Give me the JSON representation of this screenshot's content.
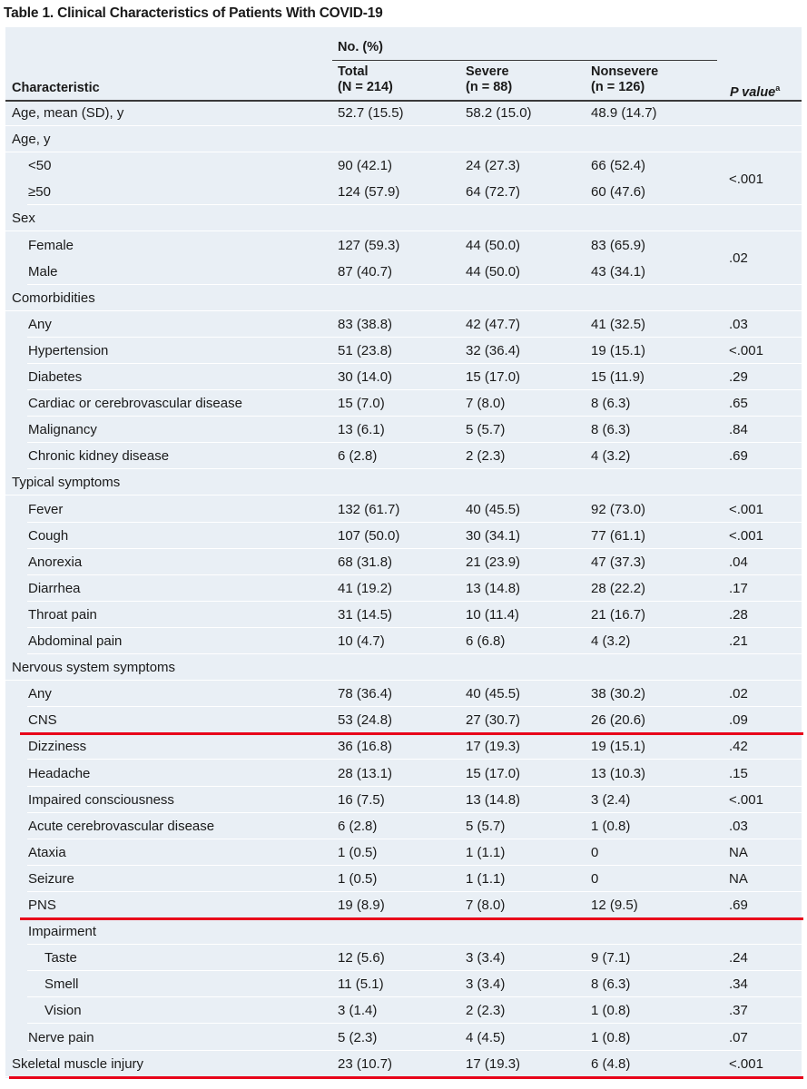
{
  "title": "Table 1. Clinical Characteristics of Patients With COVID-19",
  "header": {
    "group_label": "No. (%)",
    "characteristic": "Characteristic",
    "total_line1": "Total",
    "total_line2": "(N = 214)",
    "severe_line1": "Severe",
    "severe_line2": "(n = 88)",
    "nonsevere_line1": "Nonsevere",
    "nonsevere_line2": "(n = 126)",
    "pvalue": "P value",
    "pvalue_sup": "a"
  },
  "rows": [
    {
      "label": "Age, mean (SD), y",
      "indent": 0,
      "total": "52.7 (15.5)",
      "severe": "58.2 (15.0)",
      "nonsevere": "48.9 (14.7)",
      "p": ""
    },
    {
      "label": "Age, y",
      "indent": 0,
      "total": "",
      "severe": "",
      "nonsevere": "",
      "p": ""
    },
    {
      "label": "<50",
      "indent": 1,
      "total": "90 (42.1)",
      "severe": "24 (27.3)",
      "nonsevere": "66 (52.4)",
      "p": "",
      "no_sep": true
    },
    {
      "label": "≥50",
      "indent": 1,
      "total": "124 (57.9)",
      "severe": "64 (72.7)",
      "nonsevere": "60 (47.6)",
      "p": ""
    },
    {
      "label": "Sex",
      "indent": 0,
      "total": "",
      "severe": "",
      "nonsevere": "",
      "p": ""
    },
    {
      "label": "Female",
      "indent": 1,
      "total": "127 (59.3)",
      "severe": "44 (50.0)",
      "nonsevere": "83 (65.9)",
      "p": "",
      "no_sep": true
    },
    {
      "label": "Male",
      "indent": 1,
      "total": "87 (40.7)",
      "severe": "44 (50.0)",
      "nonsevere": "43 (34.1)",
      "p": ""
    },
    {
      "label": "Comorbidities",
      "indent": 0,
      "total": "",
      "severe": "",
      "nonsevere": "",
      "p": ""
    },
    {
      "label": "Any",
      "indent": 1,
      "total": "83 (38.8)",
      "severe": "42 (47.7)",
      "nonsevere": "41 (32.5)",
      "p": ".03"
    },
    {
      "label": "Hypertension",
      "indent": 1,
      "total": "51 (23.8)",
      "severe": "32 (36.4)",
      "nonsevere": "19 (15.1)",
      "p": "<.001"
    },
    {
      "label": "Diabetes",
      "indent": 1,
      "total": "30 (14.0)",
      "severe": "15 (17.0)",
      "nonsevere": "15 (11.9)",
      "p": ".29"
    },
    {
      "label": "Cardiac or cerebrovascular disease",
      "indent": 1,
      "total": "15 (7.0)",
      "severe": "7 (8.0)",
      "nonsevere": "8 (6.3)",
      "p": ".65"
    },
    {
      "label": "Malignancy",
      "indent": 1,
      "total": "13 (6.1)",
      "severe": "5 (5.7)",
      "nonsevere": "8 (6.3)",
      "p": ".84"
    },
    {
      "label": "Chronic kidney disease",
      "indent": 1,
      "total": "6 (2.8)",
      "severe": "2 (2.3)",
      "nonsevere": "4 (3.2)",
      "p": ".69"
    },
    {
      "label": "Typical symptoms",
      "indent": 0,
      "total": "",
      "severe": "",
      "nonsevere": "",
      "p": ""
    },
    {
      "label": "Fever",
      "indent": 1,
      "total": "132 (61.7)",
      "severe": "40 (45.5)",
      "nonsevere": "92 (73.0)",
      "p": "<.001"
    },
    {
      "label": "Cough",
      "indent": 1,
      "total": "107 (50.0)",
      "severe": "30 (34.1)",
      "nonsevere": "77 (61.1)",
      "p": "<.001"
    },
    {
      "label": "Anorexia",
      "indent": 1,
      "total": "68 (31.8)",
      "severe": "21 (23.9)",
      "nonsevere": "47 (37.3)",
      "p": ".04"
    },
    {
      "label": "Diarrhea",
      "indent": 1,
      "total": "41 (19.2)",
      "severe": "13 (14.8)",
      "nonsevere": "28 (22.2)",
      "p": ".17"
    },
    {
      "label": "Throat pain",
      "indent": 1,
      "total": "31 (14.5)",
      "severe": "10 (11.4)",
      "nonsevere": "21 (16.7)",
      "p": ".28"
    },
    {
      "label": "Abdominal pain",
      "indent": 1,
      "total": "10 (4.7)",
      "severe": "6 (6.8)",
      "nonsevere": "4 (3.2)",
      "p": ".21"
    },
    {
      "label": "Nervous system symptoms",
      "indent": 0,
      "total": "",
      "severe": "",
      "nonsevere": "",
      "p": ""
    },
    {
      "label": "Any",
      "indent": 1,
      "total": "78 (36.4)",
      "severe": "40 (45.5)",
      "nonsevere": "38 (30.2)",
      "p": ".02"
    },
    {
      "label": "CNS",
      "indent": 1,
      "total": "53 (24.8)",
      "severe": "27 (30.7)",
      "nonsevere": "26 (20.6)",
      "p": ".09",
      "highlight": true
    },
    {
      "label": "Dizziness",
      "indent": 2,
      "total": "36 (16.8)",
      "severe": "17 (19.3)",
      "nonsevere": "19 (15.1)",
      "p": ".42"
    },
    {
      "label": "Headache",
      "indent": 2,
      "total": "28 (13.1)",
      "severe": "15 (17.0)",
      "nonsevere": "13 (10.3)",
      "p": ".15"
    },
    {
      "label": "Impaired consciousness",
      "indent": 2,
      "total": "16 (7.5)",
      "severe": "13 (14.8)",
      "nonsevere": "3 (2.4)",
      "p": "<.001"
    },
    {
      "label": "Acute cerebrovascular disease",
      "indent": 2,
      "total": "6 (2.8)",
      "severe": "5 (5.7)",
      "nonsevere": "1 (0.8)",
      "p": ".03"
    },
    {
      "label": "Ataxia",
      "indent": 2,
      "total": "1 (0.5)",
      "severe": "1 (1.1)",
      "nonsevere": "0",
      "p": "NA"
    },
    {
      "label": "Seizure",
      "indent": 2,
      "total": "1 (0.5)",
      "severe": "1 (1.1)",
      "nonsevere": "0",
      "p": "NA"
    },
    {
      "label": "PNS",
      "indent": 1,
      "total": "19 (8.9)",
      "severe": "7 (8.0)",
      "nonsevere": "12 (9.5)",
      "p": ".69",
      "highlight": true
    },
    {
      "label": "Impairment",
      "indent": 2,
      "total": "",
      "severe": "",
      "nonsevere": "",
      "p": ""
    },
    {
      "label": "Taste",
      "indent": 3,
      "total": "12 (5.6)",
      "severe": "3 (3.4)",
      "nonsevere": "9 (7.1)",
      "p": ".24"
    },
    {
      "label": "Smell",
      "indent": 3,
      "total": "11 (5.1)",
      "severe": "3 (3.4)",
      "nonsevere": "8 (6.3)",
      "p": ".34"
    },
    {
      "label": "Vision",
      "indent": 3,
      "total": "3 (1.4)",
      "severe": "2 (2.3)",
      "nonsevere": "1 (0.8)",
      "p": ".37"
    },
    {
      "label": "Nerve pain",
      "indent": 2,
      "total": "5 (2.3)",
      "severe": "4 (4.5)",
      "nonsevere": "1 (0.8)",
      "p": ".07"
    },
    {
      "label": "Skeletal muscle injury",
      "indent": 0,
      "total": "23 (10.7)",
      "severe": "17 (19.3)",
      "nonsevere": "6 (4.8)",
      "p": "<.001",
      "highlight": true
    }
  ],
  "merged_p": [
    {
      "start_row": 2,
      "value": "<.001"
    },
    {
      "start_row": 5,
      "value": ".02"
    }
  ],
  "highlight_color": "#e8001a"
}
